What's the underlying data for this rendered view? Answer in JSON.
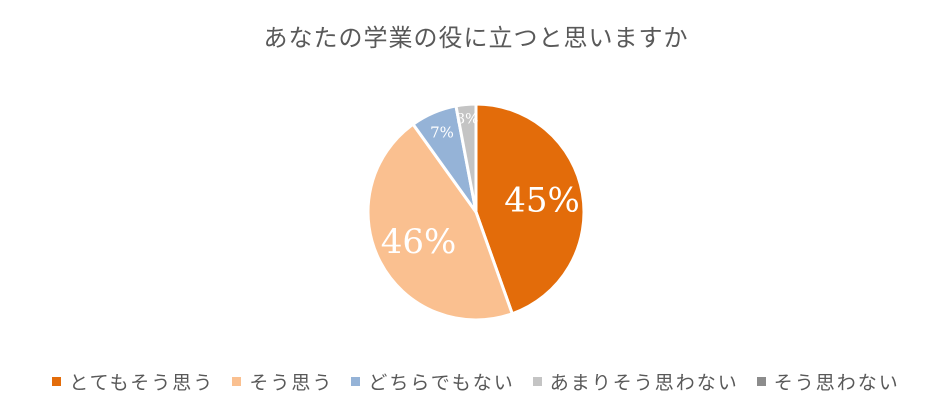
{
  "chart_data": {
    "type": "pie",
    "title": "あなたの学業の役に立つと思いますか",
    "categories": [
      "とてもそう思う",
      "そう思う",
      "どちらでもない",
      "あまりそう思わない",
      "そう思わない"
    ],
    "values": [
      45,
      46,
      7,
      3,
      0
    ],
    "data_labels": [
      "45%",
      "46%",
      "7%",
      "3%",
      ""
    ],
    "colors": [
      "#E36C0A",
      "#FAC090",
      "#95B3D7",
      "#C4C4C4",
      "#8C8C8C"
    ],
    "legend_position": "bottom",
    "start_angle_deg": 0,
    "direction": "clockwise"
  }
}
